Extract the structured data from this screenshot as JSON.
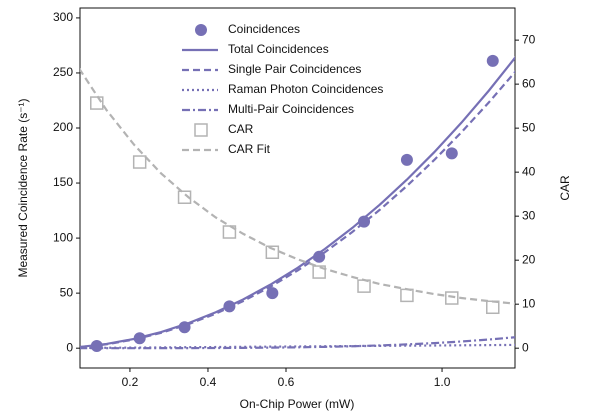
{
  "chart_data": {
    "type": "scatter",
    "x_label": "On-Chip Power (mW)",
    "y_label": "Measured Coincidence Rate (s⁻¹)",
    "y2_label": "CAR",
    "xlim": [
      0.072,
      1.187
    ],
    "ylim": [
      -18,
      309
    ],
    "y2lim": [
      -4.5,
      77.3
    ],
    "xticks": [
      0.2,
      0.4,
      0.6,
      {
        "value": 1,
        "label": "1.0"
      }
    ],
    "yticks": [
      0,
      50,
      100,
      150,
      200,
      250,
      300
    ],
    "y2ticks": [
      0,
      10,
      20,
      30,
      40,
      50,
      60,
      70
    ],
    "legend": "upper center",
    "series": [
      {
        "name": "Coincidences",
        "kind": "scatter",
        "marker": "circle",
        "color": "#7670b5",
        "axis": "y",
        "x": [
          0.115,
          0.225,
          0.34,
          0.455,
          0.565,
          0.685,
          0.8,
          0.91,
          1.025,
          1.13
        ],
        "values": [
          2,
          9,
          19,
          38,
          50,
          83,
          115,
          171,
          177,
          261
        ]
      },
      {
        "name": "Total Coincidences",
        "kind": "line",
        "dash": "solid",
        "color": "#7670b5",
        "axis": "y",
        "x": [
          0.07,
          0.14,
          0.21,
          0.28,
          0.35,
          0.42,
          0.49,
          0.56,
          0.63,
          0.7,
          0.77,
          0.84,
          0.91,
          0.98,
          1.05,
          1.12,
          1.19
        ],
        "values": [
          1.05,
          3.84,
          8.39,
          14.69,
          22.77,
          32.61,
          44.26,
          57.71,
          73.02,
          90.17,
          109.23,
          130.19,
          153.11,
          178.01,
          204.96,
          233.95,
          265.08
        ]
      },
      {
        "name": "Single Pair Coincidences",
        "kind": "line",
        "dash": "dashed",
        "color": "#7670b5",
        "axis": "y",
        "x": [
          0.07,
          0.14,
          0.21,
          0.28,
          0.35,
          0.42,
          0.49,
          0.56,
          0.63,
          0.7,
          0.77,
          0.84,
          0.91,
          0.98,
          1.05,
          1.12,
          1.19
        ],
        "values": [
          0.87,
          3.49,
          7.85,
          13.96,
          21.81,
          31.4,
          42.74,
          55.82,
          70.65,
          87.22,
          105.54,
          125.6,
          147.4,
          170.95,
          196.25,
          223.28,
          252.07
        ]
      },
      {
        "name": "Raman Photon Coincidences",
        "kind": "line",
        "dash": "dotted",
        "color": "#7670b5",
        "axis": "y",
        "x": [
          0.07,
          0.14,
          0.21,
          0.28,
          0.35,
          0.42,
          0.49,
          0.56,
          0.63,
          0.7,
          0.77,
          0.84,
          0.91,
          0.98,
          1.05,
          1.12,
          1.19
        ],
        "values": [
          0.18,
          0.35,
          0.53,
          0.7,
          0.88,
          1.05,
          1.23,
          1.4,
          1.58,
          1.75,
          1.93,
          2.1,
          2.28,
          2.45,
          2.63,
          2.8,
          2.98
        ]
      },
      {
        "name": "Multi-Pair Coincidences",
        "kind": "line",
        "dash": "dashdot",
        "color": "#7670b5",
        "axis": "y",
        "x": [
          0.07,
          0.14,
          0.21,
          0.28,
          0.35,
          0.42,
          0.49,
          0.56,
          0.63,
          0.7,
          0.77,
          0.84,
          0.91,
          0.98,
          1.05,
          1.12,
          1.19
        ],
        "values": [
          0,
          0,
          0.01,
          0.03,
          0.08,
          0.16,
          0.29,
          0.49,
          0.79,
          1.2,
          1.76,
          2.49,
          3.43,
          4.61,
          6.08,
          7.87,
          10.03
        ]
      },
      {
        "name": "CAR",
        "kind": "scatter",
        "marker": "square",
        "color": "#b3b3b3",
        "axis": "y2",
        "x": [
          0.115,
          0.225,
          0.34,
          0.455,
          0.565,
          0.685,
          0.8,
          0.91,
          1.025,
          1.13
        ],
        "values": [
          55.7,
          42.3,
          34.3,
          26.4,
          21.8,
          17.3,
          14.1,
          12.0,
          11.4,
          9.3
        ]
      },
      {
        "name": "CAR Fit",
        "kind": "line",
        "dash": "dashed",
        "color": "#b3b3b3",
        "axis": "y2",
        "x": [
          0.07,
          0.14,
          0.21,
          0.28,
          0.35,
          0.42,
          0.49,
          0.56,
          0.63,
          0.7,
          0.77,
          0.84,
          0.91,
          0.98,
          1.05,
          1.12,
          1.19
        ],
        "values": [
          63.5,
          54.1,
          46.3,
          39.7,
          34.3,
          29.7,
          26.0,
          22.8,
          20.2,
          18.0,
          16.2,
          14.6,
          13.4,
          12.3,
          11.4,
          10.7,
          10.1
        ]
      }
    ]
  }
}
